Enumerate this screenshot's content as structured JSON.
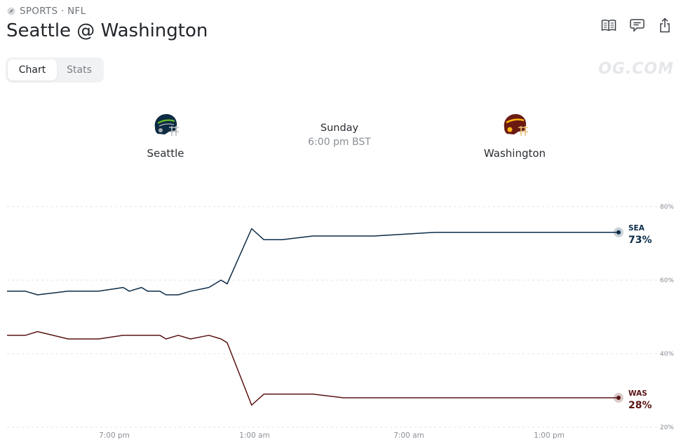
{
  "header": {
    "category": "SPORTS · NFL",
    "title": "Seattle @ Washington"
  },
  "toolbar": {
    "icons": [
      "rules-book-icon",
      "comment-icon",
      "share-icon"
    ]
  },
  "tabs": [
    {
      "label": "Chart",
      "active": true
    },
    {
      "label": "Stats",
      "active": false
    }
  ],
  "watermark": "OG.COM",
  "matchup": {
    "away": {
      "name": "Seattle",
      "abbr": "SEA",
      "color": "#0b2c47",
      "helmet_icon": "seattle-helmet-icon"
    },
    "home": {
      "name": "Washington",
      "abbr": "WAS",
      "color": "#5a1414",
      "helmet_icon": "washington-helmet-icon"
    },
    "day": "Sunday",
    "time": "6:00 pm BST"
  },
  "chart_data": {
    "type": "line",
    "x_ticks": [
      "7:00 pm",
      "1:00 am",
      "7:00 am",
      "1:00 pm"
    ],
    "y_ticks": [
      "80%",
      "60%",
      "40%",
      "20%"
    ],
    "ylim": [
      20,
      80
    ],
    "grid": true,
    "series": [
      {
        "name": "SEA",
        "color": "#0b2c47",
        "current_label": "73%",
        "x": [
          0,
          0.03,
          0.05,
          0.1,
          0.15,
          0.19,
          0.2,
          0.22,
          0.23,
          0.25,
          0.26,
          0.28,
          0.3,
          0.33,
          0.35,
          0.36,
          0.4,
          0.42,
          0.45,
          0.5,
          0.55,
          0.6,
          0.7,
          0.8,
          0.9,
          1.0
        ],
        "values": [
          57,
          57,
          56,
          57,
          57,
          58,
          57,
          58,
          57,
          57,
          56,
          56,
          57,
          58,
          60,
          59,
          74,
          71,
          71,
          72,
          72,
          72,
          73,
          73,
          73,
          73
        ]
      },
      {
        "name": "WAS",
        "color": "#5a1414",
        "current_label": "28%",
        "x": [
          0,
          0.03,
          0.05,
          0.1,
          0.15,
          0.19,
          0.2,
          0.22,
          0.23,
          0.25,
          0.26,
          0.28,
          0.3,
          0.33,
          0.35,
          0.36,
          0.4,
          0.42,
          0.45,
          0.5,
          0.55,
          0.6,
          0.7,
          0.8,
          0.9,
          1.0
        ],
        "values": [
          45,
          45,
          46,
          44,
          44,
          45,
          45,
          45,
          45,
          45,
          44,
          45,
          44,
          45,
          44,
          43,
          26,
          29,
          29,
          29,
          28,
          28,
          28,
          28,
          28,
          28
        ]
      }
    ]
  }
}
